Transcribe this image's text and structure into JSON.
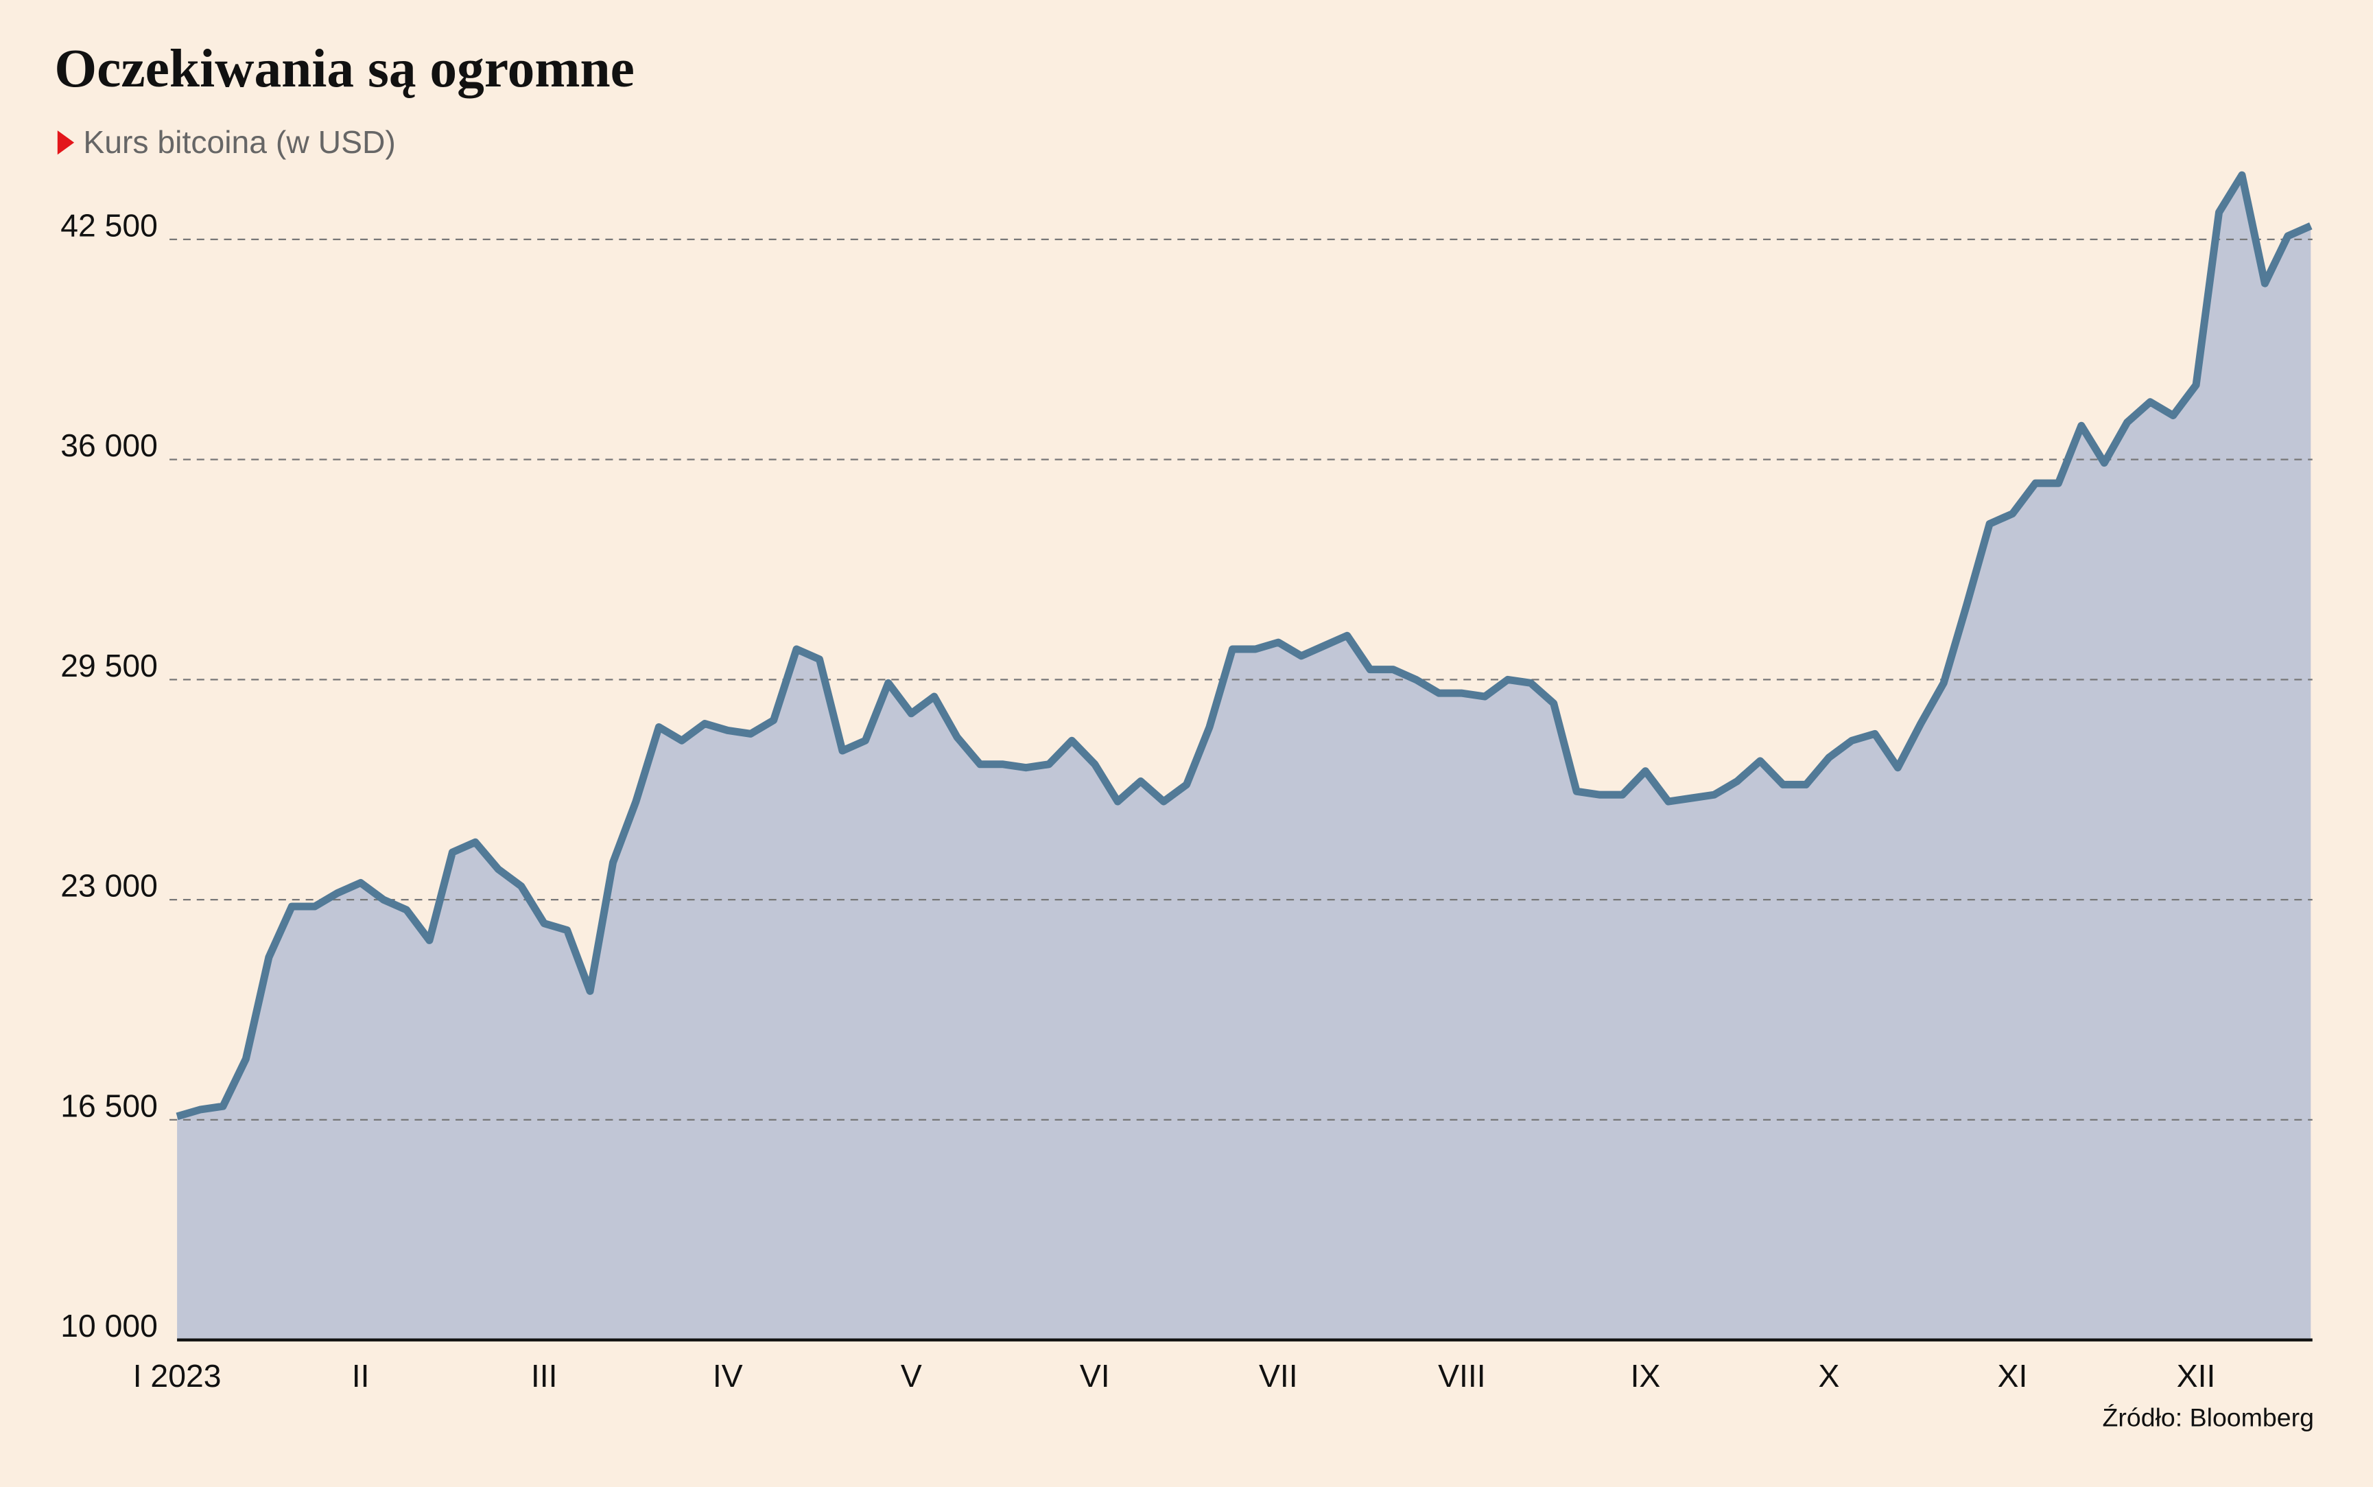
{
  "chart_data": {
    "type": "area",
    "title": "Oczekiwania są ogromne",
    "subtitle": "Kurs bitcoina (w USD)",
    "source": "Źródło: Bloomberg",
    "color": "#527a97",
    "fill_color": "#c1c6d6",
    "grid": true,
    "ylim": [
      10000,
      46000
    ],
    "yticks": [
      {
        "value": 10000,
        "label": "10 000"
      },
      {
        "value": 16500,
        "label": "16 500"
      },
      {
        "value": 23000,
        "label": "23 000"
      },
      {
        "value": 29500,
        "label": "29 500"
      },
      {
        "value": 36000,
        "label": "36 000"
      },
      {
        "value": 42500,
        "label": "42 500"
      }
    ],
    "categories": [
      "I 2023",
      null,
      null,
      null,
      null,
      null,
      null,
      null,
      "II",
      null,
      null,
      null,
      null,
      null,
      null,
      null,
      "III",
      null,
      null,
      null,
      null,
      null,
      null,
      null,
      "IV",
      null,
      null,
      null,
      null,
      null,
      null,
      null,
      "V",
      null,
      null,
      null,
      null,
      null,
      null,
      null,
      "VI",
      null,
      null,
      null,
      null,
      null,
      null,
      null,
      "VII",
      null,
      null,
      null,
      null,
      null,
      null,
      null,
      "VIII",
      null,
      null,
      null,
      null,
      null,
      null,
      null,
      "IX",
      null,
      null,
      null,
      null,
      null,
      null,
      null,
      "X",
      null,
      null,
      null,
      null,
      null,
      null,
      null,
      "XI",
      null,
      null,
      null,
      null,
      null,
      null,
      null,
      "XII",
      null,
      null,
      null,
      null,
      null
    ],
    "values": [
      16600,
      16800,
      16900,
      18300,
      21300,
      22800,
      22800,
      23200,
      23500,
      23000,
      22700,
      21800,
      24400,
      24700,
      23900,
      23400,
      22300,
      22100,
      20300,
      24100,
      25900,
      28100,
      27700,
      28200,
      28000,
      27900,
      28300,
      30400,
      30100,
      27400,
      27700,
      29400,
      28500,
      29000,
      27800,
      27000,
      27000,
      26900,
      27000,
      27700,
      27000,
      25900,
      26500,
      25900,
      26400,
      28100,
      30400,
      30400,
      30600,
      30200,
      30500,
      30800,
      29800,
      29800,
      29500,
      29100,
      29100,
      29000,
      29500,
      29400,
      28800,
      26200,
      26100,
      26100,
      26800,
      25900,
      26000,
      26100,
      26500,
      27100,
      26400,
      26400,
      27200,
      27700,
      27900,
      26900,
      28200,
      29400,
      31700,
      34100,
      34400,
      35300,
      35300,
      37000,
      35900,
      37100,
      37700,
      37300,
      38200,
      43300,
      44400,
      41200,
      42600,
      42900
    ]
  }
}
